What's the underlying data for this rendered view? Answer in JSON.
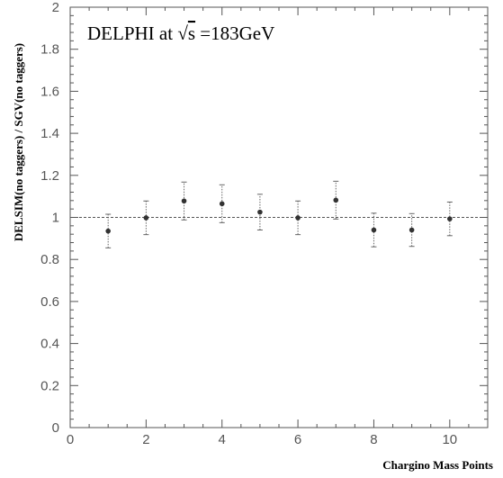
{
  "chart_data": {
    "type": "scatter",
    "title": "DELPHI at √s =183GeV",
    "title_parts": {
      "prefix": "DELPHI at ",
      "radical": "s",
      "suffix": " =183GeV"
    },
    "xlabel": "Chargino Mass Points",
    "ylabel": "DELSIM(no taggers) / SGV(no taggers)",
    "xlim": [
      0,
      11
    ],
    "ylim": [
      0,
      2
    ],
    "x_ticks": [
      0,
      2,
      4,
      6,
      8,
      10
    ],
    "x_tick_labels": [
      "0",
      "2",
      "4",
      "6",
      "8",
      "10"
    ],
    "y_ticks": [
      0,
      0.2,
      0.4,
      0.6,
      0.8,
      1,
      1.2,
      1.4,
      1.6,
      1.8,
      2
    ],
    "y_tick_labels": [
      "0",
      "0.2",
      "0.4",
      "0.6",
      "0.8",
      "1",
      "1.2",
      "1.4",
      "1.6",
      "1.8",
      "2"
    ],
    "reference_line": {
      "y": 1,
      "style": "dashed"
    },
    "grid": false,
    "series": [
      {
        "points": [
          {
            "x": 1,
            "y": 0.935,
            "err": 0.08
          },
          {
            "x": 2,
            "y": 0.998,
            "err": 0.08
          },
          {
            "x": 3,
            "y": 1.078,
            "err": 0.09
          },
          {
            "x": 4,
            "y": 1.065,
            "err": 0.09
          },
          {
            "x": 5,
            "y": 1.025,
            "err": 0.085
          },
          {
            "x": 6,
            "y": 0.998,
            "err": 0.08
          },
          {
            "x": 7,
            "y": 1.082,
            "err": 0.09
          },
          {
            "x": 8,
            "y": 0.94,
            "err": 0.08
          },
          {
            "x": 9,
            "y": 0.94,
            "err": 0.078
          },
          {
            "x": 10,
            "y": 0.993,
            "err": 0.08
          }
        ]
      }
    ],
    "colors": {
      "marker": "#333333",
      "error_bar": "#666666",
      "axis": "#555555",
      "reference": "#555555"
    }
  }
}
